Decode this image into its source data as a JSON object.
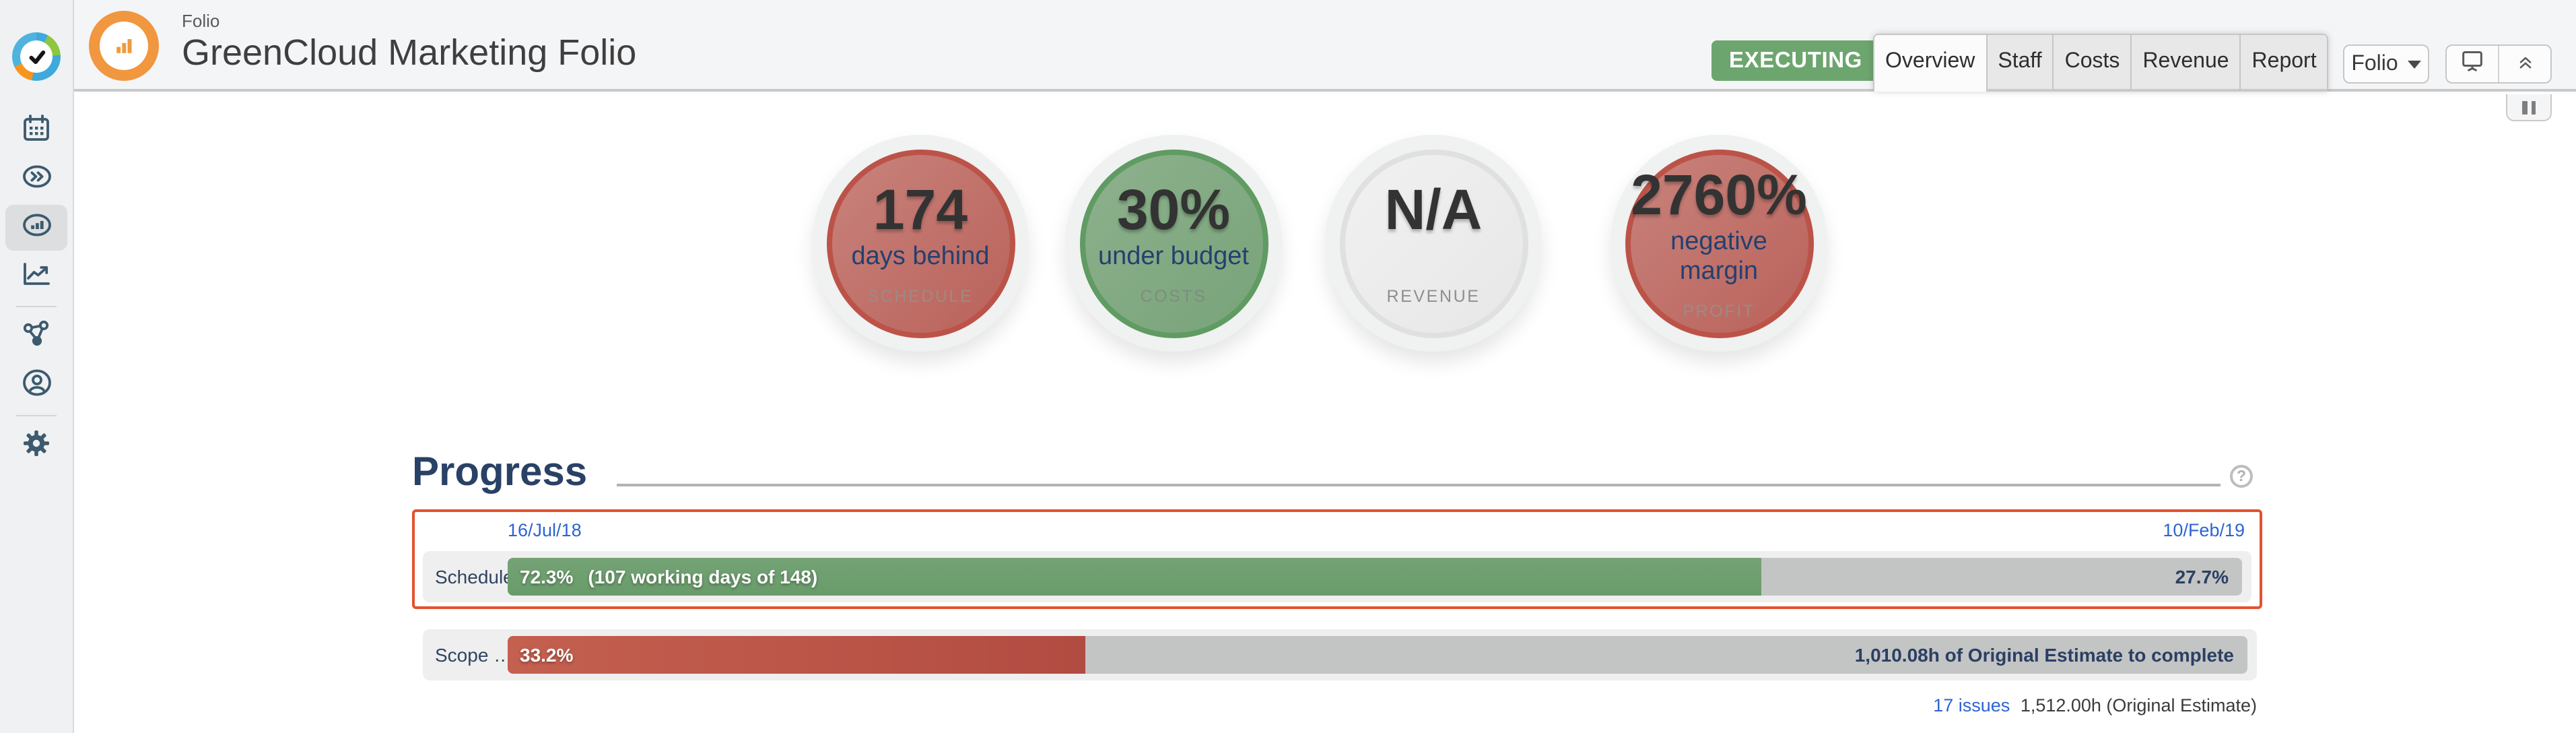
{
  "app": {
    "kicker": "Folio",
    "title": "GreenCloud Marketing Folio",
    "status_badge": "EXECUTING"
  },
  "header": {
    "tabs": [
      {
        "label": "Overview",
        "active": true
      },
      {
        "label": "Staff",
        "active": false
      },
      {
        "label": "Costs",
        "active": false
      },
      {
        "label": "Revenue",
        "active": false
      },
      {
        "label": "Report",
        "active": false
      }
    ],
    "folio_dropdown_label": "Folio"
  },
  "sidebar": {
    "items": [
      {
        "icon": "calendar-icon",
        "active": false
      },
      {
        "icon": "fast-forward-oval-icon",
        "active": false
      },
      {
        "icon": "dashboard-gauge-icon",
        "active": true
      },
      {
        "icon": "trend-chart-icon",
        "active": false
      },
      {
        "icon": "network-share-icon",
        "active": false
      },
      {
        "icon": "user-circle-icon",
        "active": false
      },
      {
        "icon": "gear-icon",
        "active": false
      }
    ]
  },
  "gauges": [
    {
      "value": "174",
      "subtitle": "days behind",
      "label": "SCHEDULE",
      "color": "red"
    },
    {
      "value": "30%",
      "subtitle": "under budget",
      "label": "COSTS",
      "color": "green"
    },
    {
      "value": "N/A",
      "subtitle": "",
      "label": "REVENUE",
      "color": "gray"
    },
    {
      "value": "2760%",
      "subtitle": "negative margin",
      "label": "PROFIT",
      "color": "red"
    }
  ],
  "progress": {
    "heading": "Progress",
    "help_icon": "?",
    "schedule": {
      "label": "Schedule",
      "start_date": "16/Jul/18",
      "end_date": "10/Feb/19",
      "percent": 72.3,
      "percent_label": "72.3%",
      "detail": "(107 working days of 148)",
      "remaining_label": "27.7%"
    },
    "scope": {
      "label": "Scope …",
      "percent": 33.2,
      "percent_label": "33.2%",
      "remaining_label": "1,010.08h of Original Estimate to complete",
      "issues_link": "17 issues",
      "issues_detail": "1,512.00h (Original Estimate)"
    }
  },
  "colors": {
    "highlight_border": "#e3512f",
    "status_green": "#6da56e",
    "bar_green": "#6f9f70",
    "bar_red": "#bb564b",
    "gauge_red": "#bc5348",
    "gauge_green": "#5f9b62",
    "link_blue": "#2d63d3",
    "navy_text": "#2a4166"
  }
}
